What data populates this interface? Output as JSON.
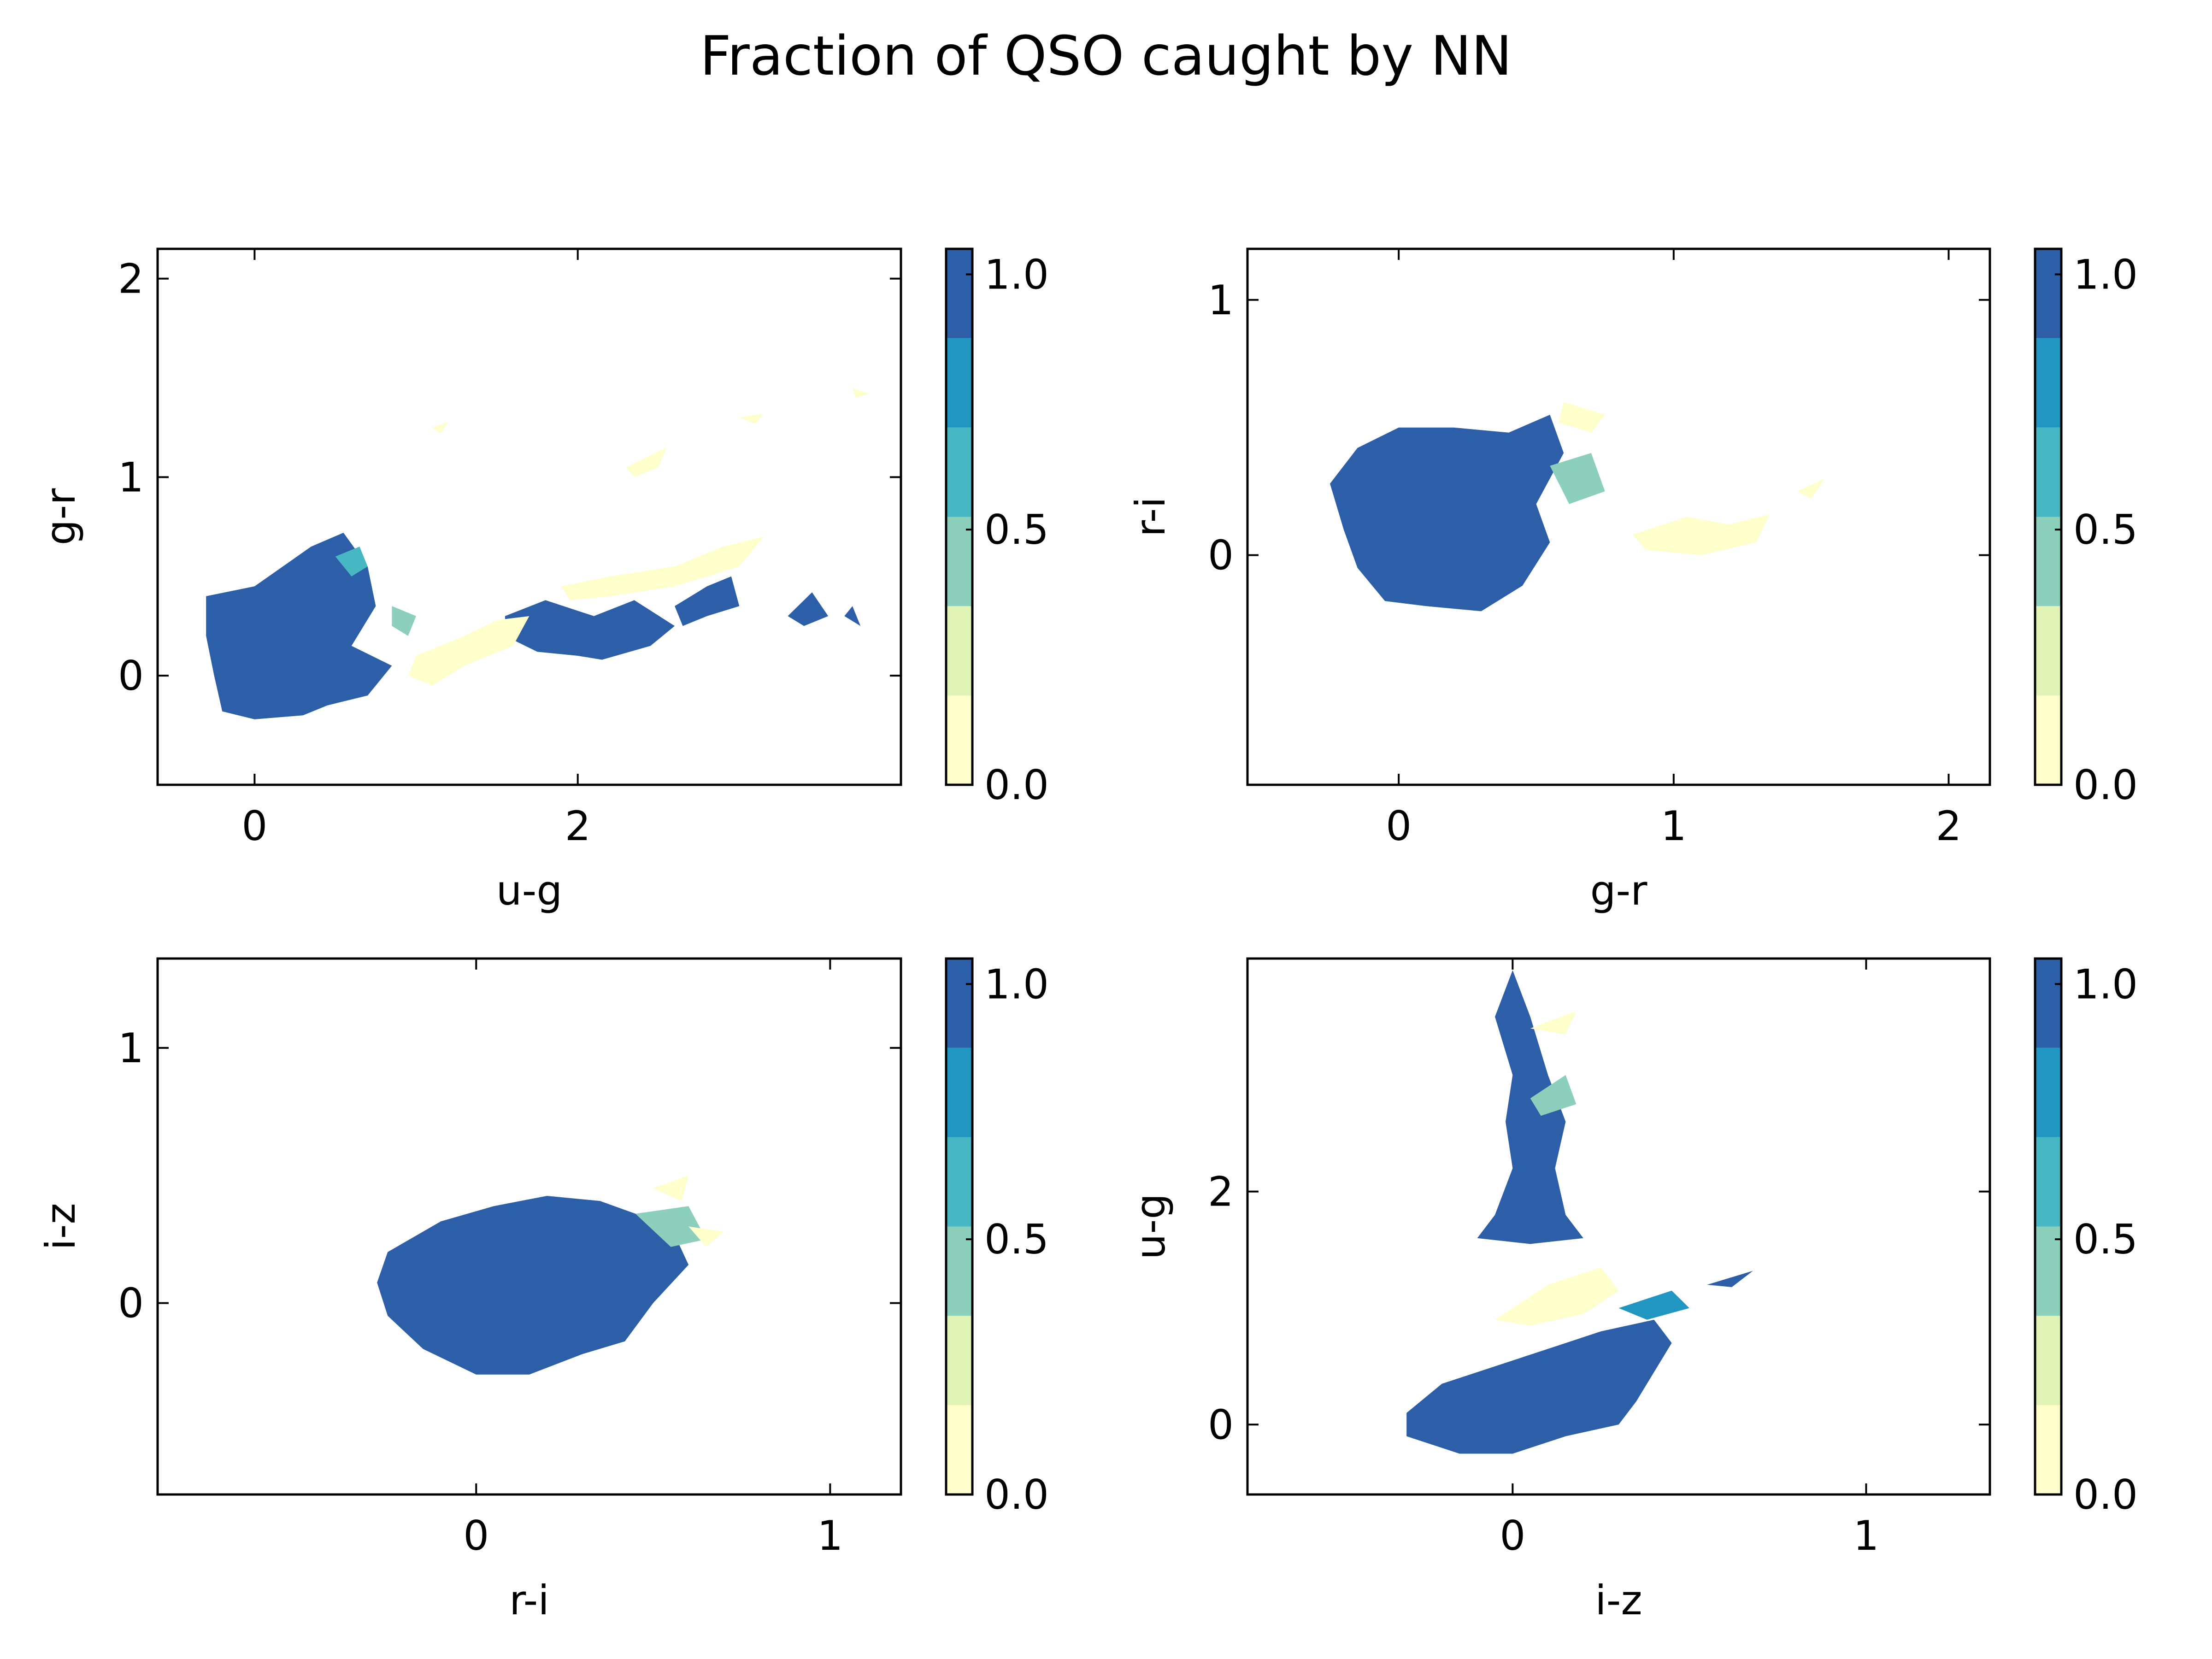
{
  "title": "Fraction of QSO caught by NN",
  "chart_data": [
    {
      "type": "filled-contour",
      "xlabel": "u-g",
      "ylabel": "g-r",
      "xlim": [
        -0.6,
        4.0
      ],
      "ylim": [
        -0.55,
        2.15
      ],
      "xticks": [
        0,
        2
      ],
      "xtick_labels": [
        "0",
        "2"
      ],
      "yticks": [
        0,
        1,
        2
      ],
      "ytick_labels": [
        "0",
        "1",
        "2"
      ],
      "colorbar": {
        "levels": [
          0.0,
          0.175,
          0.35,
          0.525,
          0.7,
          0.875,
          1.05
        ],
        "ticks": [
          0.0,
          0.5,
          1.0
        ],
        "tick_labels": [
          "0.0",
          "0.5",
          "1.0"
        ]
      },
      "regions": [
        {
          "value": 0.95,
          "polygon": [
            [
              -0.3,
              0.4
            ],
            [
              0.0,
              0.45
            ],
            [
              0.35,
              0.65
            ],
            [
              0.55,
              0.72
            ],
            [
              0.7,
              0.55
            ],
            [
              0.75,
              0.35
            ],
            [
              0.6,
              0.15
            ],
            [
              0.85,
              0.05
            ],
            [
              0.7,
              -0.1
            ],
            [
              0.45,
              -0.15
            ],
            [
              0.3,
              -0.2
            ],
            [
              0.0,
              -0.22
            ],
            [
              -0.2,
              -0.18
            ],
            [
              -0.25,
              0.0
            ],
            [
              -0.3,
              0.2
            ]
          ]
        },
        {
          "value": 0.95,
          "polygon": [
            [
              1.55,
              0.3
            ],
            [
              1.8,
              0.38
            ],
            [
              2.1,
              0.3
            ],
            [
              2.35,
              0.38
            ],
            [
              2.6,
              0.25
            ],
            [
              2.45,
              0.15
            ],
            [
              2.15,
              0.08
            ],
            [
              2.0,
              0.1
            ],
            [
              1.75,
              0.12
            ],
            [
              1.55,
              0.2
            ]
          ]
        },
        {
          "value": 0.95,
          "polygon": [
            [
              2.6,
              0.35
            ],
            [
              2.8,
              0.45
            ],
            [
              2.95,
              0.5
            ],
            [
              3.0,
              0.35
            ],
            [
              2.8,
              0.3
            ],
            [
              2.65,
              0.25
            ]
          ]
        },
        {
          "value": 0.9,
          "polygon": [
            [
              3.3,
              0.3
            ],
            [
              3.45,
              0.42
            ],
            [
              3.55,
              0.3
            ],
            [
              3.4,
              0.25
            ]
          ]
        },
        {
          "value": 0.95,
          "polygon": [
            [
              3.65,
              0.3
            ],
            [
              3.75,
              0.25
            ],
            [
              3.7,
              0.35
            ]
          ]
        },
        {
          "value": 0.55,
          "polygon": [
            [
              0.5,
              0.6
            ],
            [
              0.65,
              0.65
            ],
            [
              0.7,
              0.55
            ],
            [
              0.6,
              0.5
            ]
          ]
        },
        {
          "value": 0.45,
          "polygon": [
            [
              0.85,
              0.35
            ],
            [
              1.0,
              0.3
            ],
            [
              0.95,
              0.2
            ],
            [
              0.85,
              0.25
            ]
          ]
        },
        {
          "value": 0.05,
          "polygon": [
            [
              1.0,
              0.1
            ],
            [
              1.3,
              0.2
            ],
            [
              1.5,
              0.28
            ],
            [
              1.7,
              0.3
            ],
            [
              1.6,
              0.15
            ],
            [
              1.3,
              0.05
            ],
            [
              1.1,
              -0.05
            ],
            [
              0.95,
              0.0
            ]
          ]
        },
        {
          "value": 0.05,
          "polygon": [
            [
              1.9,
              0.45
            ],
            [
              2.2,
              0.5
            ],
            [
              2.6,
              0.55
            ],
            [
              2.9,
              0.65
            ],
            [
              3.15,
              0.7
            ],
            [
              3.0,
              0.55
            ],
            [
              2.6,
              0.45
            ],
            [
              2.2,
              0.4
            ],
            [
              1.95,
              0.38
            ]
          ]
        },
        {
          "value": 0.05,
          "polygon": [
            [
              2.3,
              1.05
            ],
            [
              2.55,
              1.15
            ],
            [
              2.5,
              1.05
            ],
            [
              2.35,
              1.0
            ]
          ]
        },
        {
          "value": 0.05,
          "polygon": [
            [
              1.1,
              1.25
            ],
            [
              1.2,
              1.28
            ],
            [
              1.15,
              1.22
            ]
          ]
        },
        {
          "value": 0.05,
          "polygon": [
            [
              3.0,
              1.3
            ],
            [
              3.15,
              1.32
            ],
            [
              3.1,
              1.27
            ]
          ]
        },
        {
          "value": 0.05,
          "polygon": [
            [
              3.7,
              1.45
            ],
            [
              3.8,
              1.42
            ],
            [
              3.72,
              1.4
            ]
          ]
        }
      ]
    },
    {
      "type": "filled-contour",
      "xlabel": "g-r",
      "ylabel": "r-i",
      "xlim": [
        -0.55,
        2.15
      ],
      "ylim": [
        -0.9,
        1.2
      ],
      "xticks": [
        0,
        1,
        2
      ],
      "xtick_labels": [
        "0",
        "1",
        "2"
      ],
      "yticks": [
        0,
        1
      ],
      "ytick_labels": [
        "0",
        "1"
      ],
      "colorbar": {
        "levels": [
          0.0,
          0.175,
          0.35,
          0.525,
          0.7,
          0.875,
          1.05
        ],
        "ticks": [
          0.0,
          0.5,
          1.0
        ],
        "tick_labels": [
          "0.0",
          "0.5",
          "1.0"
        ]
      },
      "regions": [
        {
          "value": 0.95,
          "polygon": [
            [
              -0.25,
              0.28
            ],
            [
              -0.15,
              0.42
            ],
            [
              0.0,
              0.5
            ],
            [
              0.2,
              0.5
            ],
            [
              0.4,
              0.48
            ],
            [
              0.55,
              0.55
            ],
            [
              0.6,
              0.4
            ],
            [
              0.5,
              0.2
            ],
            [
              0.55,
              0.05
            ],
            [
              0.45,
              -0.12
            ],
            [
              0.3,
              -0.22
            ],
            [
              0.1,
              -0.2
            ],
            [
              -0.05,
              -0.18
            ],
            [
              -0.15,
              -0.05
            ],
            [
              -0.2,
              0.1
            ]
          ]
        },
        {
          "value": 0.5,
          "polygon": [
            [
              0.55,
              0.35
            ],
            [
              0.7,
              0.4
            ],
            [
              0.75,
              0.25
            ],
            [
              0.62,
              0.2
            ]
          ]
        },
        {
          "value": 0.05,
          "polygon": [
            [
              0.85,
              0.08
            ],
            [
              1.05,
              0.15
            ],
            [
              1.2,
              0.12
            ],
            [
              1.35,
              0.16
            ],
            [
              1.3,
              0.05
            ],
            [
              1.1,
              0.0
            ],
            [
              0.9,
              0.02
            ]
          ]
        },
        {
          "value": 0.05,
          "polygon": [
            [
              0.6,
              0.6
            ],
            [
              0.75,
              0.55
            ],
            [
              0.7,
              0.48
            ],
            [
              0.58,
              0.52
            ]
          ]
        },
        {
          "value": 0.05,
          "polygon": [
            [
              1.45,
              0.25
            ],
            [
              1.55,
              0.3
            ],
            [
              1.5,
              0.22
            ]
          ]
        }
      ]
    },
    {
      "type": "filled-contour",
      "xlabel": "r-i",
      "ylabel": "i-z",
      "xlim": [
        -0.9,
        1.2
      ],
      "ylim": [
        -0.75,
        1.35
      ],
      "xticks": [
        0,
        1
      ],
      "xtick_labels": [
        "0",
        "1"
      ],
      "yticks": [
        0,
        1
      ],
      "ytick_labels": [
        "0",
        "1"
      ],
      "colorbar": {
        "levels": [
          0.0,
          0.175,
          0.35,
          0.525,
          0.7,
          0.875,
          1.05
        ],
        "ticks": [
          0.0,
          0.5,
          1.0
        ],
        "tick_labels": [
          "0.0",
          "0.5",
          "1.0"
        ]
      },
      "regions": [
        {
          "value": 0.95,
          "polygon": [
            [
              -0.25,
              0.2
            ],
            [
              -0.1,
              0.32
            ],
            [
              0.05,
              0.38
            ],
            [
              0.2,
              0.42
            ],
            [
              0.35,
              0.4
            ],
            [
              0.45,
              0.35
            ],
            [
              0.55,
              0.3
            ],
            [
              0.6,
              0.15
            ],
            [
              0.5,
              0.0
            ],
            [
              0.42,
              -0.15
            ],
            [
              0.3,
              -0.2
            ],
            [
              0.15,
              -0.28
            ],
            [
              0.0,
              -0.28
            ],
            [
              -0.15,
              -0.18
            ],
            [
              -0.25,
              -0.05
            ],
            [
              -0.28,
              0.08
            ]
          ]
        },
        {
          "value": 0.5,
          "polygon": [
            [
              0.45,
              0.35
            ],
            [
              0.6,
              0.38
            ],
            [
              0.65,
              0.25
            ],
            [
              0.55,
              0.22
            ]
          ]
        },
        {
          "value": 0.05,
          "polygon": [
            [
              0.5,
              0.45
            ],
            [
              0.6,
              0.5
            ],
            [
              0.58,
              0.4
            ]
          ]
        },
        {
          "value": 0.05,
          "polygon": [
            [
              0.6,
              0.3
            ],
            [
              0.7,
              0.28
            ],
            [
              0.65,
              0.22
            ]
          ]
        }
      ]
    },
    {
      "type": "filled-contour",
      "xlabel": "i-z",
      "ylabel": "u-g",
      "xlim": [
        -0.75,
        1.35
      ],
      "ylim": [
        -0.6,
        4.0
      ],
      "xticks": [
        0,
        1
      ],
      "xtick_labels": [
        "0",
        "1"
      ],
      "yticks": [
        0,
        2
      ],
      "ytick_labels": [
        "0",
        "2"
      ],
      "colorbar": {
        "levels": [
          0.0,
          0.175,
          0.35,
          0.525,
          0.7,
          0.875,
          1.05
        ],
        "ticks": [
          0.0,
          0.5,
          1.0
        ],
        "tick_labels": [
          "0.0",
          "0.5",
          "1.0"
        ]
      },
      "regions": [
        {
          "value": 0.95,
          "polygon": [
            [
              -0.3,
              0.1
            ],
            [
              -0.2,
              0.35
            ],
            [
              -0.05,
              0.5
            ],
            [
              0.1,
              0.65
            ],
            [
              0.25,
              0.8
            ],
            [
              0.4,
              0.9
            ],
            [
              0.45,
              0.7
            ],
            [
              0.4,
              0.45
            ],
            [
              0.35,
              0.2
            ],
            [
              0.3,
              0.0
            ],
            [
              0.15,
              -0.1
            ],
            [
              0.0,
              -0.25
            ],
            [
              -0.15,
              -0.25
            ],
            [
              -0.3,
              -0.1
            ]
          ]
        },
        {
          "value": 0.95,
          "polygon": [
            [
              -0.1,
              1.6
            ],
            [
              -0.05,
              1.8
            ],
            [
              0.0,
              2.2
            ],
            [
              -0.02,
              2.6
            ],
            [
              0.0,
              3.0
            ],
            [
              -0.05,
              3.5
            ],
            [
              0.0,
              3.9
            ],
            [
              0.05,
              3.5
            ],
            [
              0.1,
              3.0
            ],
            [
              0.15,
              2.6
            ],
            [
              0.12,
              2.2
            ],
            [
              0.15,
              1.8
            ],
            [
              0.2,
              1.6
            ],
            [
              0.05,
              1.55
            ]
          ]
        },
        {
          "value": 0.85,
          "polygon": [
            [
              0.3,
              1.0
            ],
            [
              0.45,
              1.15
            ],
            [
              0.5,
              1.0
            ],
            [
              0.38,
              0.9
            ]
          ]
        },
        {
          "value": 0.5,
          "polygon": [
            [
              0.05,
              2.8
            ],
            [
              0.15,
              3.0
            ],
            [
              0.18,
              2.75
            ],
            [
              0.08,
              2.65
            ]
          ]
        },
        {
          "value": 0.05,
          "polygon": [
            [
              -0.05,
              0.9
            ],
            [
              0.1,
              1.2
            ],
            [
              0.25,
              1.35
            ],
            [
              0.3,
              1.15
            ],
            [
              0.2,
              0.95
            ],
            [
              0.05,
              0.85
            ]
          ]
        },
        {
          "value": 0.05,
          "polygon": [
            [
              0.05,
              3.4
            ],
            [
              0.18,
              3.55
            ],
            [
              0.15,
              3.35
            ]
          ]
        },
        {
          "value": 0.95,
          "polygon": [
            [
              0.55,
              1.2
            ],
            [
              0.68,
              1.32
            ],
            [
              0.62,
              1.18
            ]
          ]
        }
      ]
    }
  ]
}
